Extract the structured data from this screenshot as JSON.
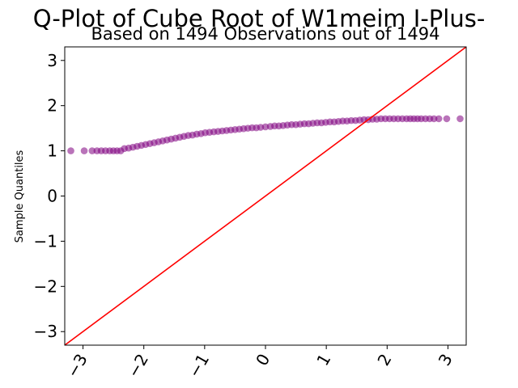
{
  "chart_data": {
    "type": "scatter",
    "title": "Q-Plot of Cube Root of W1meim I-Plus-",
    "subtitle": "Based on 1494 Observations out of 1494",
    "xlabel": "",
    "ylabel": "Sample Quantiles",
    "xlim": [
      -3.3,
      3.3
    ],
    "ylim": [
      -3.3,
      3.3
    ],
    "xticks": [
      -3,
      -2,
      -1,
      0,
      1,
      2,
      3
    ],
    "xtick_labels": [
      "−3",
      "−2",
      "−1",
      "0",
      "1",
      "2",
      "3"
    ],
    "yticks": [
      -3,
      -2,
      -1,
      0,
      1,
      2,
      3
    ],
    "ytick_labels": [
      "−3",
      "−2",
      "−1",
      "0",
      "1",
      "2",
      "3"
    ],
    "grid": false,
    "point_color": "#800080",
    "point_alpha": 0.55,
    "line_color": "#ff0000",
    "reference_line": {
      "slope": 1,
      "intercept": 0
    },
    "series": [
      {
        "name": "sample quantiles",
        "x": [
          -3.2,
          -2.98,
          -2.85,
          -2.77,
          -2.7,
          -2.63,
          -2.56,
          -2.5,
          -2.44,
          -2.38,
          -2.32,
          -2.25,
          -2.18,
          -2.11,
          -2.04,
          -1.97,
          -1.9,
          -1.83,
          -1.76,
          -1.69,
          -1.62,
          -1.55,
          -1.48,
          -1.41,
          -1.34,
          -1.27,
          -1.2,
          -1.13,
          -1.06,
          -0.99,
          -0.92,
          -0.85,
          -0.78,
          -0.71,
          -0.64,
          -0.57,
          -0.5,
          -0.43,
          -0.36,
          -0.29,
          -0.22,
          -0.15,
          -0.08,
          0.0,
          0.08,
          0.15,
          0.22,
          0.29,
          0.36,
          0.43,
          0.5,
          0.57,
          0.64,
          0.71,
          0.78,
          0.85,
          0.92,
          0.99,
          1.06,
          1.13,
          1.2,
          1.27,
          1.34,
          1.41,
          1.48,
          1.55,
          1.62,
          1.69,
          1.76,
          1.83,
          1.9,
          1.97,
          2.04,
          2.11,
          2.18,
          2.25,
          2.32,
          2.38,
          2.44,
          2.5,
          2.56,
          2.63,
          2.7,
          2.77,
          2.85,
          2.98,
          3.2
        ],
        "y": [
          1.0,
          1.0,
          1.0,
          1.0,
          1.0,
          1.0,
          1.0,
          1.0,
          1.0,
          1.0,
          1.05,
          1.06,
          1.08,
          1.1,
          1.12,
          1.14,
          1.16,
          1.18,
          1.2,
          1.22,
          1.24,
          1.26,
          1.28,
          1.3,
          1.32,
          1.34,
          1.35,
          1.37,
          1.38,
          1.4,
          1.41,
          1.42,
          1.43,
          1.44,
          1.45,
          1.46,
          1.47,
          1.48,
          1.49,
          1.5,
          1.51,
          1.51,
          1.52,
          1.53,
          1.54,
          1.55,
          1.55,
          1.56,
          1.57,
          1.58,
          1.58,
          1.59,
          1.6,
          1.6,
          1.61,
          1.62,
          1.62,
          1.63,
          1.64,
          1.64,
          1.65,
          1.66,
          1.66,
          1.67,
          1.67,
          1.68,
          1.69,
          1.69,
          1.7,
          1.7,
          1.71,
          1.71,
          1.71,
          1.71,
          1.71,
          1.71,
          1.71,
          1.71,
          1.71,
          1.71,
          1.71,
          1.71,
          1.71,
          1.71,
          1.71,
          1.71,
          1.71
        ]
      }
    ]
  }
}
